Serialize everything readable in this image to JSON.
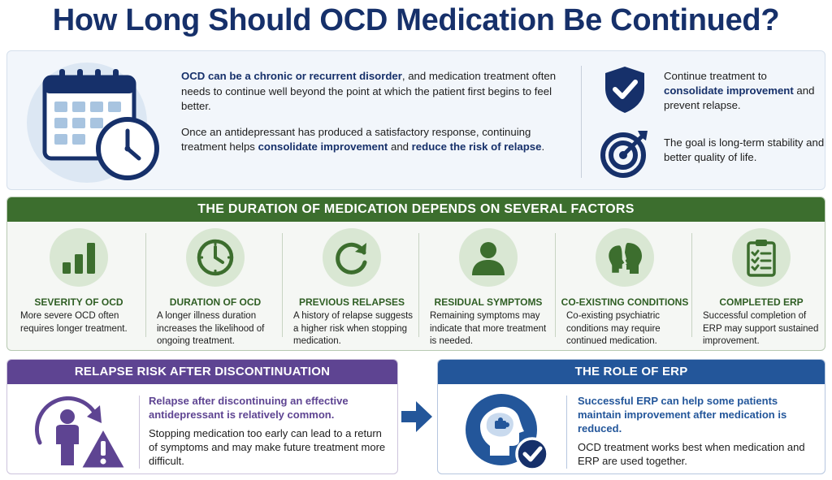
{
  "title": "How Long Should OCD Medication Be Continued?",
  "intro": {
    "p1_highlight": "OCD can be a chronic or recurrent disorder",
    "p1_rest": ", and medication treatment often needs to continue well beyond the point at which the patient first begins to feel better.",
    "p2_start": "Once an antidepressant has produced a satisfactory response, continuing treatment helps ",
    "p2_highlight1": "consolidate improvement",
    "p2_mid": " and ",
    "p2_highlight2": "reduce the risk of relapse",
    "p2_end": ".",
    "side1_start": "Continue treatment to ",
    "side1_highlight": "consolidate improvement",
    "side1_end": " and prevent relapse.",
    "side2": "The goal is long-term stability and better quality of life.",
    "icons": [
      "calendar-clock-icon",
      "shield-check-icon",
      "target-icon"
    ]
  },
  "factors": {
    "header": "THE DURATION OF MEDICATION DEPENDS ON SEVERAL FACTORS",
    "items": [
      {
        "title": "SEVERITY OF OCD",
        "desc": "More severe OCD often requires longer treatment.",
        "icon": "bar-chart-icon"
      },
      {
        "title": "DURATION OF OCD",
        "desc": "A longer illness duration increases the likelihood of ongoing treatment.",
        "icon": "clock-icon"
      },
      {
        "title": "PREVIOUS RELAPSES",
        "desc": "A history of relapse suggests a higher risk when stopping medication.",
        "icon": "refresh-icon"
      },
      {
        "title": "RESIDUAL SYMPTOMS",
        "desc": "Remaining symptoms may indicate that more treatment is needed.",
        "icon": "person-icon"
      },
      {
        "title": "CO-EXISTING CONDITIONS",
        "desc": "Co-existing psychiatric conditions may require continued medication.",
        "icon": "two-heads-icon"
      },
      {
        "title": "COMPLETED ERP",
        "desc": "Successful completion of ERP may support sustained improvement.",
        "icon": "clipboard-checklist-icon"
      }
    ]
  },
  "relapse": {
    "header": "RELAPSE RISK AFTER DISCONTINUATION",
    "em": "Relapse after discontinuing an effective antidepressant is relatively common.",
    "body": "Stopping medication too early can lead to a return of symptoms and may make future treatment more difficult.",
    "icon": "person-warning-icon"
  },
  "erp": {
    "header": "THE ROLE OF ERP",
    "em": "Successful ERP can help some patients maintain improvement after medication is reduced.",
    "body": "OCD treatment works best when medication and ERP are used together.",
    "icon": "head-puzzle-check-icon"
  },
  "colors": {
    "navy": "#16306a",
    "green": "#3c6e2e",
    "purple": "#5e4492",
    "blue": "#23569a"
  }
}
